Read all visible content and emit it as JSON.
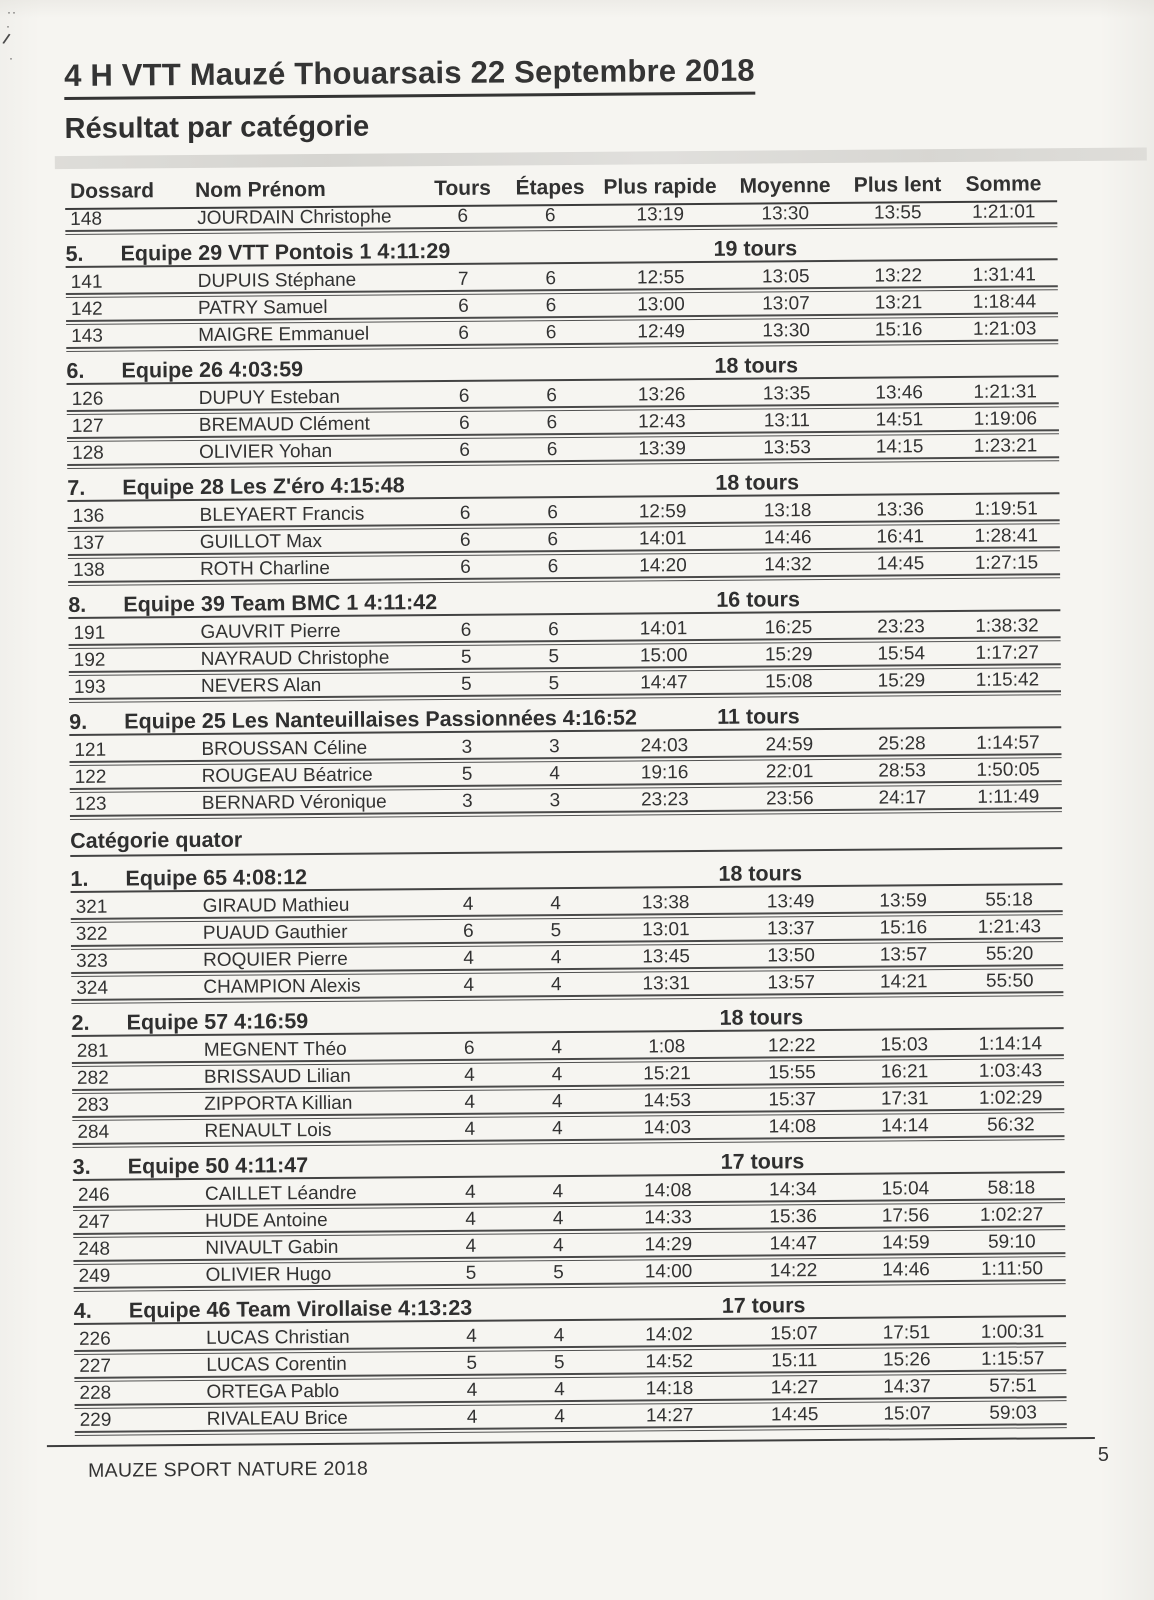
{
  "page": {
    "title": "4 H VTT Mauzé Thouarsais 22 Septembre 2018",
    "subtitle": "Résultat par catégorie",
    "footer_club": "MAUZE SPORT NATURE 2018",
    "page_number": "5"
  },
  "colors": {
    "paper": "#f6f5f1",
    "ink": "#2d2d2d",
    "rule": "#454545",
    "scan_band": "#d6d5d1"
  },
  "table": {
    "columns": [
      {
        "key": "dossard",
        "label": "Dossard"
      },
      {
        "key": "nom",
        "label": "Nom Prénom"
      },
      {
        "key": "tours",
        "label": "Tours"
      },
      {
        "key": "etapes",
        "label": "Étapes"
      },
      {
        "key": "rapide",
        "label": "Plus rapide"
      },
      {
        "key": "moyenne",
        "label": "Moyenne"
      },
      {
        "key": "lent",
        "label": "Plus lent"
      },
      {
        "key": "somme",
        "label": "Somme"
      }
    ],
    "groups": [
      {
        "heading": "",
        "sections": [
          {
            "rank": "",
            "team": "",
            "tours": "",
            "rows": [
              [
                "148",
                "JOURDAIN Christophe",
                "6",
                "6",
                "13:19",
                "13:30",
                "13:55",
                "1:21:01"
              ]
            ]
          },
          {
            "rank": "5.",
            "team": "Equipe 29 VTT Pontois 1 4:11:29",
            "tours": "19 tours",
            "rows": [
              [
                "141",
                "DUPUIS Stéphane",
                "7",
                "6",
                "12:55",
                "13:05",
                "13:22",
                "1:31:41"
              ],
              [
                "142",
                "PATRY Samuel",
                "6",
                "6",
                "13:00",
                "13:07",
                "13:21",
                "1:18:44"
              ],
              [
                "143",
                "MAIGRE Emmanuel",
                "6",
                "6",
                "12:49",
                "13:30",
                "15:16",
                "1:21:03"
              ]
            ]
          },
          {
            "rank": "6.",
            "team": "Equipe 26 4:03:59",
            "tours": "18 tours",
            "rows": [
              [
                "126",
                "DUPUY Esteban",
                "6",
                "6",
                "13:26",
                "13:35",
                "13:46",
                "1:21:31"
              ],
              [
                "127",
                "BREMAUD Clément",
                "6",
                "6",
                "12:43",
                "13:11",
                "14:51",
                "1:19:06"
              ],
              [
                "128",
                "OLIVIER Yohan",
                "6",
                "6",
                "13:39",
                "13:53",
                "14:15",
                "1:23:21"
              ]
            ]
          },
          {
            "rank": "7.",
            "team": "Equipe 28 Les Z'éro 4:15:48",
            "tours": "18 tours",
            "rows": [
              [
                "136",
                "BLEYAERT Francis",
                "6",
                "6",
                "12:59",
                "13:18",
                "13:36",
                "1:19:51"
              ],
              [
                "137",
                "GUILLOT Max",
                "6",
                "6",
                "14:01",
                "14:46",
                "16:41",
                "1:28:41"
              ],
              [
                "138",
                "ROTH Charline",
                "6",
                "6",
                "14:20",
                "14:32",
                "14:45",
                "1:27:15"
              ]
            ]
          },
          {
            "rank": "8.",
            "team": "Equipe 39 Team BMC 1 4:11:42",
            "tours": "16 tours",
            "rows": [
              [
                "191",
                "GAUVRIT Pierre",
                "6",
                "6",
                "14:01",
                "16:25",
                "23:23",
                "1:38:32"
              ],
              [
                "192",
                "NAYRAUD Christophe",
                "5",
                "5",
                "15:00",
                "15:29",
                "15:54",
                "1:17:27"
              ],
              [
                "193",
                "NEVERS Alan",
                "5",
                "5",
                "14:47",
                "15:08",
                "15:29",
                "1:15:42"
              ]
            ]
          },
          {
            "rank": "9.",
            "team": "Equipe 25 Les Nanteuillaises Passionnées 4:16:52",
            "tours": "11 tours",
            "rows": [
              [
                "121",
                "BROUSSAN Céline",
                "3",
                "3",
                "24:03",
                "24:59",
                "25:28",
                "1:14:57"
              ],
              [
                "122",
                "ROUGEAU Béatrice",
                "5",
                "4",
                "19:16",
                "22:01",
                "28:53",
                "1:50:05"
              ],
              [
                "123",
                "BERNARD Véronique",
                "3",
                "3",
                "23:23",
                "23:56",
                "24:17",
                "1:11:49"
              ]
            ]
          }
        ]
      },
      {
        "heading": "Catégorie quator",
        "sections": [
          {
            "rank": "1.",
            "team": "Equipe 65 4:08:12",
            "tours": "18 tours",
            "rows": [
              [
                "321",
                "GIRAUD Mathieu",
                "4",
                "4",
                "13:38",
                "13:49",
                "13:59",
                "55:18"
              ],
              [
                "322",
                "PUAUD Gauthier",
                "6",
                "5",
                "13:01",
                "13:37",
                "15:16",
                "1:21:43"
              ],
              [
                "323",
                "ROQUIER Pierre",
                "4",
                "4",
                "13:45",
                "13:50",
                "13:57",
                "55:20"
              ],
              [
                "324",
                "CHAMPION Alexis",
                "4",
                "4",
                "13:31",
                "13:57",
                "14:21",
                "55:50"
              ]
            ]
          },
          {
            "rank": "2.",
            "team": "Equipe 57 4:16:59",
            "tours": "18 tours",
            "rows": [
              [
                "281",
                "MEGNENT Théo",
                "6",
                "4",
                "1:08",
                "12:22",
                "15:03",
                "1:14:14"
              ],
              [
                "282",
                "BRISSAUD Lilian",
                "4",
                "4",
                "15:21",
                "15:55",
                "16:21",
                "1:03:43"
              ],
              [
                "283",
                "ZIPPORTA Killian",
                "4",
                "4",
                "14:53",
                "15:37",
                "17:31",
                "1:02:29"
              ],
              [
                "284",
                "RENAULT Lois",
                "4",
                "4",
                "14:03",
                "14:08",
                "14:14",
                "56:32"
              ]
            ]
          },
          {
            "rank": "3.",
            "team": "Equipe 50 4:11:47",
            "tours": "17 tours",
            "rows": [
              [
                "246",
                "CAILLET Léandre",
                "4",
                "4",
                "14:08",
                "14:34",
                "15:04",
                "58:18"
              ],
              [
                "247",
                "HUDE Antoine",
                "4",
                "4",
                "14:33",
                "15:36",
                "17:56",
                "1:02:27"
              ],
              [
                "248",
                "NIVAULT Gabin",
                "4",
                "4",
                "14:29",
                "14:47",
                "14:59",
                "59:10"
              ],
              [
                "249",
                "OLIVIER Hugo",
                "5",
                "5",
                "14:00",
                "14:22",
                "14:46",
                "1:11:50"
              ]
            ]
          },
          {
            "rank": "4.",
            "team": "Equipe 46 Team Virollaise 4:13:23",
            "tours": "17 tours",
            "rows": [
              [
                "226",
                "LUCAS Christian",
                "4",
                "4",
                "14:02",
                "15:07",
                "17:51",
                "1:00:31"
              ],
              [
                "227",
                "LUCAS Corentin",
                "5",
                "5",
                "14:52",
                "15:11",
                "15:26",
                "1:15:57"
              ],
              [
                "228",
                "ORTEGA Pablo",
                "4",
                "4",
                "14:18",
                "14:27",
                "14:37",
                "57:51"
              ],
              [
                "229",
                "RIVALEAU Brice",
                "4",
                "4",
                "14:27",
                "14:45",
                "15:07",
                "59:03"
              ]
            ]
          }
        ]
      }
    ]
  }
}
